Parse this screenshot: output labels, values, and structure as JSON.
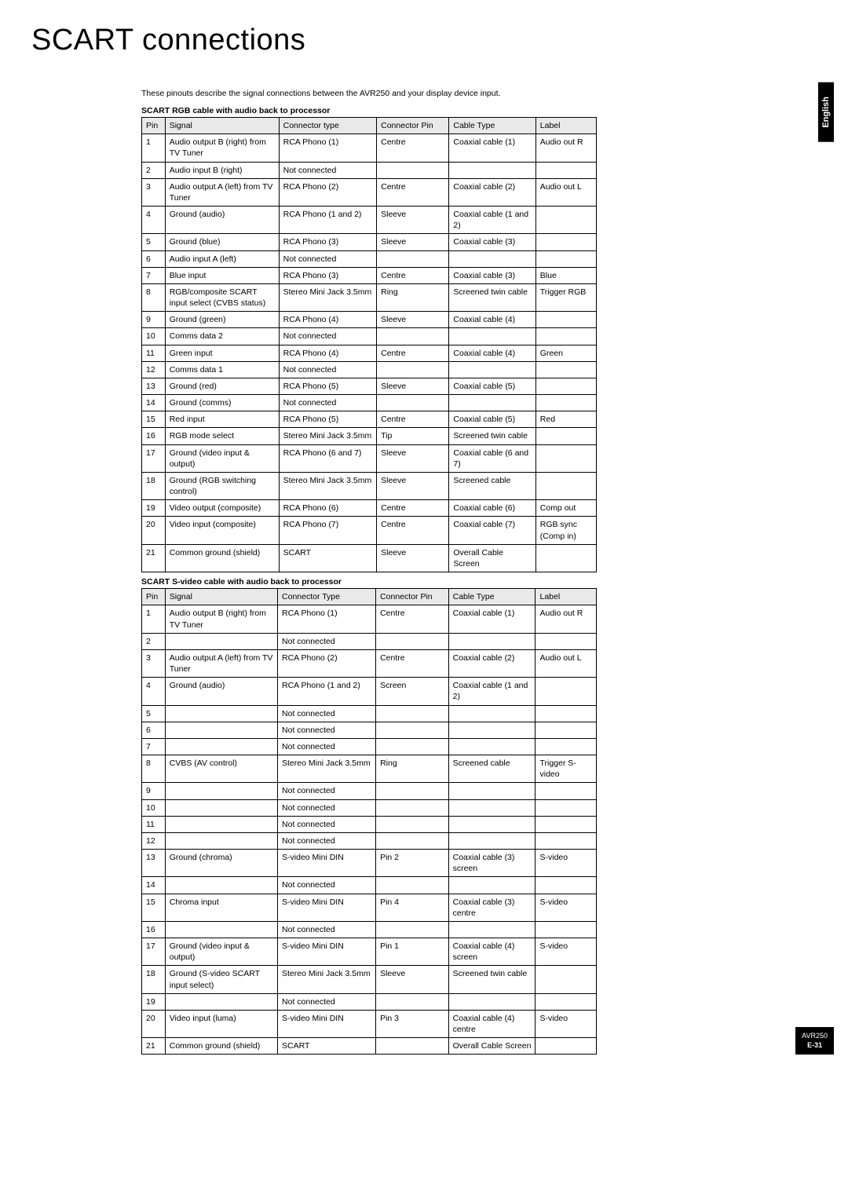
{
  "title": "SCART connections",
  "intro": "These pinouts describe the signal connections between the AVR250 and your display device input.",
  "sideTab": "English",
  "badge": {
    "model": "AVR250",
    "page": "E-31"
  },
  "table1": {
    "title": "SCART RGB cable with audio back to processor",
    "headers": [
      "Pin",
      "Signal",
      "Connector type",
      "Connector Pin",
      "Cable Type",
      "Label"
    ],
    "rows": [
      [
        "1",
        "Audio output B (right) from TV Tuner",
        "RCA Phono (1)",
        "Centre",
        "Coaxial cable (1)",
        "Audio out R"
      ],
      [
        "2",
        "Audio input B (right)",
        "Not connected",
        "",
        "",
        ""
      ],
      [
        "3",
        "Audio output A (left) from TV Tuner",
        "RCA Phono (2)",
        "Centre",
        "Coaxial cable (2)",
        "Audio out L"
      ],
      [
        "4",
        "Ground (audio)",
        "RCA Phono (1 and 2)",
        "Sleeve",
        "Coaxial cable (1 and 2)",
        ""
      ],
      [
        "5",
        "Ground (blue)",
        "RCA Phono (3)",
        "Sleeve",
        "Coaxial cable (3)",
        ""
      ],
      [
        "6",
        "Audio input A (left)",
        "Not connected",
        "",
        "",
        ""
      ],
      [
        "7",
        "Blue input",
        "RCA Phono (3)",
        "Centre",
        "Coaxial cable (3)",
        "Blue"
      ],
      [
        "8",
        "RGB/composite SCART input select (CVBS status)",
        "Stereo Mini Jack 3.5mm",
        "Ring",
        "Screened twin cable",
        "Trigger RGB"
      ],
      [
        "9",
        "Ground (green)",
        "RCA Phono (4)",
        "Sleeve",
        "Coaxial cable (4)",
        ""
      ],
      [
        "10",
        "Comms data 2",
        "Not connected",
        "",
        "",
        ""
      ],
      [
        "11",
        "Green input",
        "RCA Phono (4)",
        "Centre",
        "Coaxial cable (4)",
        "Green"
      ],
      [
        "12",
        "Comms data 1",
        "Not connected",
        "",
        "",
        ""
      ],
      [
        "13",
        "Ground (red)",
        "RCA Phono (5)",
        "Sleeve",
        "Coaxial cable (5)",
        ""
      ],
      [
        "14",
        "Ground (comms)",
        "Not connected",
        "",
        "",
        ""
      ],
      [
        "15",
        "Red input",
        "RCA Phono (5)",
        "Centre",
        "Coaxial cable (5)",
        "Red"
      ],
      [
        "16",
        "RGB mode select",
        "Stereo Mini Jack 3.5mm",
        "Tip",
        "Screened twin cable",
        ""
      ],
      [
        "17",
        "Ground (video input & output)",
        "RCA Phono (6 and 7)",
        "Sleeve",
        "Coaxial cable (6 and 7)",
        ""
      ],
      [
        "18",
        "Ground (RGB switching control)",
        "Stereo Mini Jack 3.5mm",
        "Sleeve",
        "Screened cable",
        ""
      ],
      [
        "19",
        "Video output (composite)",
        "RCA Phono (6)",
        "Centre",
        "Coaxial cable (6)",
        "Comp out"
      ],
      [
        "20",
        "Video input (composite)",
        "RCA Phono (7)",
        "Centre",
        "Coaxial cable (7)",
        "RGB sync (Comp in)"
      ],
      [
        "21",
        "Common ground (shield)",
        "SCART",
        "Sleeve",
        "Overall Cable Screen",
        ""
      ]
    ]
  },
  "table2": {
    "title": "SCART S-video cable with audio back to processor",
    "headers": [
      "Pin",
      "Signal",
      "Connector Type",
      "Connector Pin",
      "Cable Type",
      "Label"
    ],
    "rows": [
      [
        "1",
        "Audio output B (right) from TV Tuner",
        "RCA Phono (1)",
        "Centre",
        "Coaxial cable (1)",
        "Audio out R"
      ],
      [
        "2",
        "",
        "Not connected",
        "",
        "",
        ""
      ],
      [
        "3",
        "Audio output A (left) from TV Tuner",
        "RCA Phono (2)",
        "Centre",
        "Coaxial cable (2)",
        "Audio out L"
      ],
      [
        "4",
        "Ground (audio)",
        "RCA Phono (1 and 2)",
        "Screen",
        "Coaxial cable (1 and 2)",
        ""
      ],
      [
        "5",
        "",
        "Not connected",
        "",
        "",
        ""
      ],
      [
        "6",
        "",
        "Not connected",
        "",
        "",
        ""
      ],
      [
        "7",
        "",
        "Not connected",
        "",
        "",
        ""
      ],
      [
        "8",
        "CVBS (AV control)",
        "Stereo Mini Jack 3.5mm",
        "Ring",
        "Screened cable",
        "Trigger S-video"
      ],
      [
        "9",
        "",
        "Not connected",
        "",
        "",
        ""
      ],
      [
        "10",
        "",
        "Not connected",
        "",
        "",
        ""
      ],
      [
        "11",
        "",
        "Not connected",
        "",
        "",
        ""
      ],
      [
        "12",
        "",
        "Not connected",
        "",
        "",
        ""
      ],
      [
        "13",
        "Ground (chroma)",
        "S-video Mini DIN",
        "Pin 2",
        "Coaxial cable (3) screen",
        "S-video"
      ],
      [
        "14",
        "",
        "Not connected",
        "",
        "",
        ""
      ],
      [
        "15",
        "Chroma input",
        "S-video Mini DIN",
        "Pin 4",
        "Coaxial cable (3) centre",
        "S-video"
      ],
      [
        "16",
        "",
        "Not connected",
        "",
        "",
        ""
      ],
      [
        "17",
        "Ground (video input & output)",
        "S-video Mini DIN",
        "Pin 1",
        "Coaxial cable (4) screen",
        "S-video"
      ],
      [
        "18",
        "Ground (S-video SCART input select)",
        "Stereo Mini Jack 3.5mm",
        "Sleeve",
        "Screened twin cable",
        ""
      ],
      [
        "19",
        "",
        "Not connected",
        "",
        "",
        ""
      ],
      [
        "20",
        "Video input (luma)",
        "S-video Mini DIN",
        "Pin 3",
        "Coaxial cable (4) centre",
        "S-video"
      ],
      [
        "21",
        "Common ground (shield)",
        "SCART",
        "",
        "Overall Cable Screen",
        ""
      ]
    ]
  }
}
